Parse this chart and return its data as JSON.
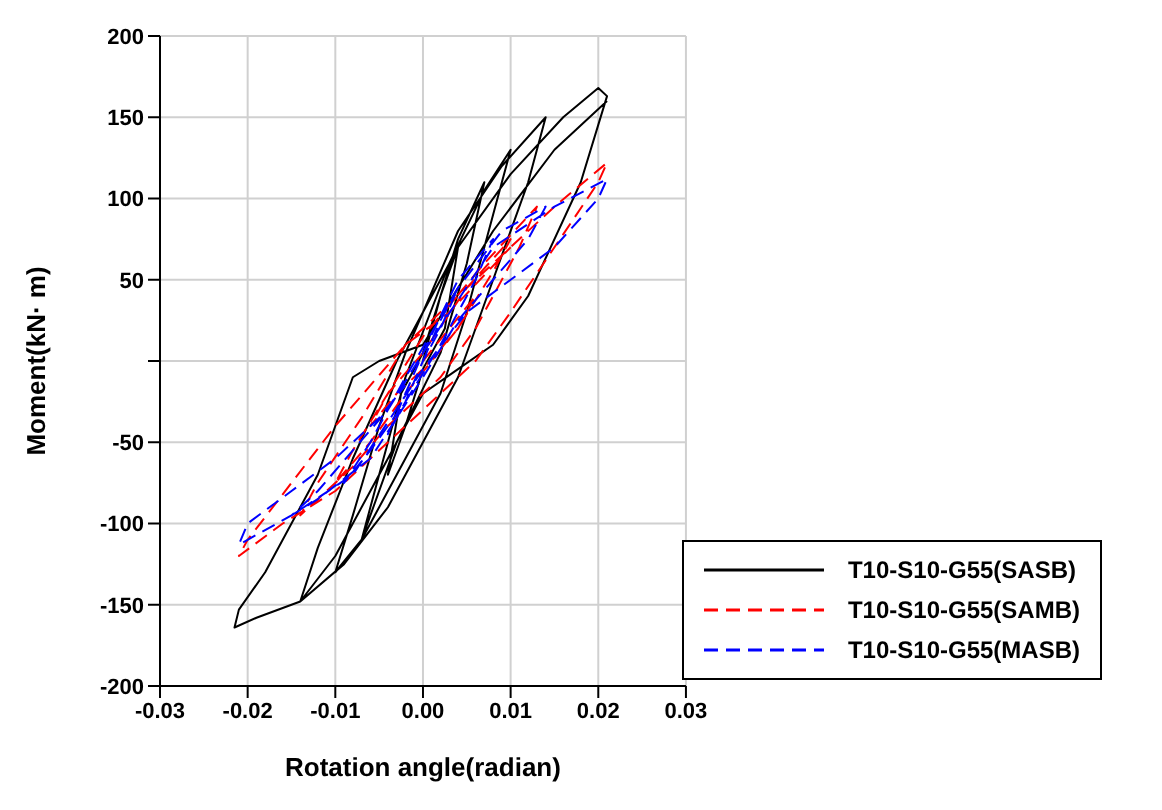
{
  "chart_data": {
    "type": "line",
    "xlabel": "Rotation angle(radian)",
    "ylabel": "Moment(kN· m)",
    "xlim": [
      -0.03,
      0.03
    ],
    "xticks": [
      -0.03,
      -0.02,
      -0.01,
      {
        "value": 0,
        "label": "0.00"
      },
      0.01,
      0.02,
      0.03
    ],
    "ylim": [
      -200,
      200
    ],
    "yticks": [
      -200,
      -150,
      -100,
      -50,
      {
        "value": 0,
        "label": null
      },
      50,
      100,
      150,
      200
    ],
    "grid": true,
    "legend": "bottom right",
    "marker": "none",
    "series": [
      {
        "name": "T10-S10-G55(SASB)",
        "color": "#000000",
        "line_style": "solid",
        "x": [
          0,
          0.002,
          0.004,
          0.0025,
          0,
          -0.002,
          -0.004,
          -0.0025,
          0,
          0.004,
          0.007,
          0.005,
          0.002,
          -0.003,
          -0.007,
          -0.005,
          -0.002,
          0.003,
          0.007,
          0.01,
          0.008,
          0.005,
          0.002,
          -0.004,
          -0.007,
          -0.01,
          -0.008,
          -0.005,
          -0.002,
          0.004,
          0.009,
          0.014,
          0.012,
          0.008,
          0.004,
          -0.004,
          -0.009,
          -0.014,
          -0.012,
          -0.008,
          -0.003,
          0.004,
          0.01,
          0.016,
          0.02,
          0.021,
          0.018,
          0.012,
          0.008,
          0.004,
          0,
          -0.005,
          -0.01,
          -0.014,
          -0.019,
          -0.0215,
          -0.021,
          -0.018,
          -0.012,
          -0.01,
          -0.008,
          -0.005,
          0,
          0.008,
          0.015,
          0.021
        ],
        "values": [
          0,
          40,
          70,
          20,
          -5,
          -40,
          -70,
          -20,
          5,
          75,
          110,
          60,
          5,
          -50,
          -110,
          -70,
          -10,
          60,
          105,
          130,
          90,
          30,
          -20,
          -80,
          -110,
          -130,
          -95,
          -40,
          5,
          80,
          120,
          150,
          110,
          50,
          -10,
          -90,
          -125,
          -148,
          -115,
          -60,
          0,
          70,
          115,
          150,
          168,
          163,
          110,
          40,
          10,
          -5,
          -20,
          -70,
          -120,
          -148,
          -158,
          -164,
          -153,
          -130,
          -70,
          -40,
          -10,
          0,
          10,
          80,
          130,
          160
        ]
      },
      {
        "name": "T10-S10-G55(SAMB)",
        "color": "#ff0000",
        "line_style": "dashed",
        "x": [
          0,
          0.003,
          0.006,
          0.004,
          0,
          -0.003,
          -0.006,
          -0.004,
          0,
          0.005,
          0.01,
          0.008,
          0.004,
          -0.002,
          -0.006,
          -0.01,
          -0.008,
          -0.004,
          0,
          0.007,
          0.013,
          0.011,
          0.006,
          0.002,
          -0.004,
          -0.008,
          -0.014,
          -0.012,
          -0.007,
          -0.002,
          0.008,
          0.015,
          0.021,
          0.02,
          0.015,
          0.01,
          0.006,
          0.002,
          -0.004,
          -0.01,
          -0.016,
          -0.021,
          -0.02,
          -0.015,
          -0.01,
          -0.006,
          -0.002,
          0.003,
          0.01
        ],
        "values": [
          0,
          20,
          40,
          20,
          -5,
          -20,
          -40,
          -20,
          5,
          45,
          75,
          55,
          20,
          -20,
          -50,
          -75,
          -55,
          -20,
          15,
          60,
          95,
          70,
          20,
          -10,
          -40,
          -65,
          -95,
          -75,
          -35,
          10,
          60,
          95,
          122,
          110,
          70,
          30,
          0,
          -20,
          -50,
          -80,
          -100,
          -120,
          -110,
          -75,
          -40,
          -15,
          10,
          30,
          70
        ]
      },
      {
        "name": "T10-S10-G55(MASB)",
        "color": "#0000ff",
        "line_style": "dashed",
        "x": [
          0,
          0.002,
          0.004,
          0.002,
          0,
          -0.002,
          -0.004,
          -0.002,
          0,
          0.004,
          0.008,
          0.006,
          0.002,
          -0.002,
          -0.006,
          -0.009,
          -0.006,
          -0.002,
          0.004,
          0.009,
          0.014,
          0.012,
          0.008,
          0.004,
          0,
          -0.006,
          -0.012,
          -0.015,
          -0.012,
          -0.008,
          -0.004,
          0,
          0.008,
          0.015,
          0.021,
          0.02,
          0.015,
          0.01,
          0.005,
          0,
          -0.008,
          -0.015,
          -0.021,
          -0.02,
          -0.015,
          -0.01,
          -0.005,
          -0.002
        ],
        "values": [
          0,
          25,
          45,
          20,
          0,
          -25,
          -45,
          -20,
          5,
          50,
          75,
          50,
          10,
          -25,
          -55,
          -75,
          -50,
          -10,
          45,
          80,
          95,
          75,
          50,
          25,
          -10,
          -60,
          -85,
          -95,
          -80,
          -55,
          -30,
          5,
          70,
          95,
          112,
          100,
          70,
          50,
          30,
          -5,
          -70,
          -95,
          -113,
          -100,
          -80,
          -60,
          -35,
          -15
        ]
      }
    ]
  }
}
